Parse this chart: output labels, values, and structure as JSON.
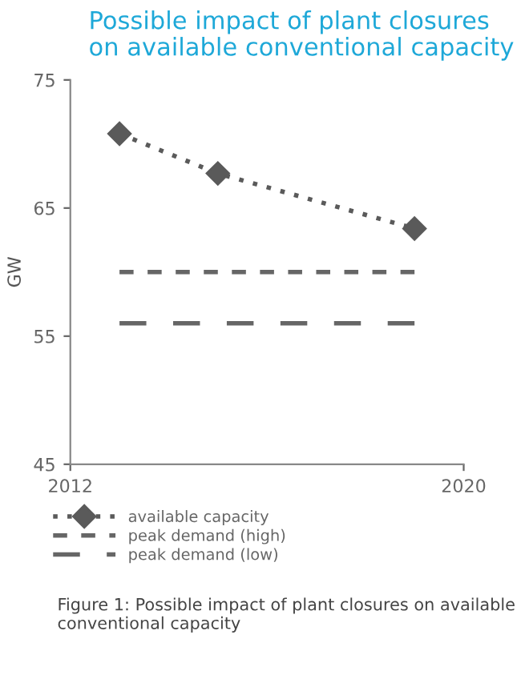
{
  "chart_data": {
    "type": "line",
    "title": "Possible impact of plant closures\non available conventional capacity",
    "ylabel": "GW",
    "xlim": [
      2012,
      2020
    ],
    "xticks": [
      2012,
      2020
    ],
    "ylim": [
      45,
      75
    ],
    "yticks": [
      45,
      55,
      65,
      75
    ],
    "grid": false,
    "legend": "bottom left",
    "series": [
      {
        "name": "available capacity",
        "color": "#5a5a5a",
        "x": [
          2013,
          2015,
          2019
        ],
        "values": [
          70.8,
          67.7,
          63.4
        ],
        "marker": "diamond",
        "line_style": "dotted"
      },
      {
        "name": "peak demand (high)",
        "color": "#666666",
        "x": [
          2013,
          2019
        ],
        "values": [
          60,
          60
        ],
        "line_style": "dashed"
      },
      {
        "name": "peak demand (low)",
        "color": "#666666",
        "x": [
          2013,
          2019
        ],
        "values": [
          56,
          56
        ],
        "line_style": "longdash"
      }
    ],
    "annotations": [
      "Figure 1: Possible impact of plant closures on available conventional capacity"
    ]
  }
}
